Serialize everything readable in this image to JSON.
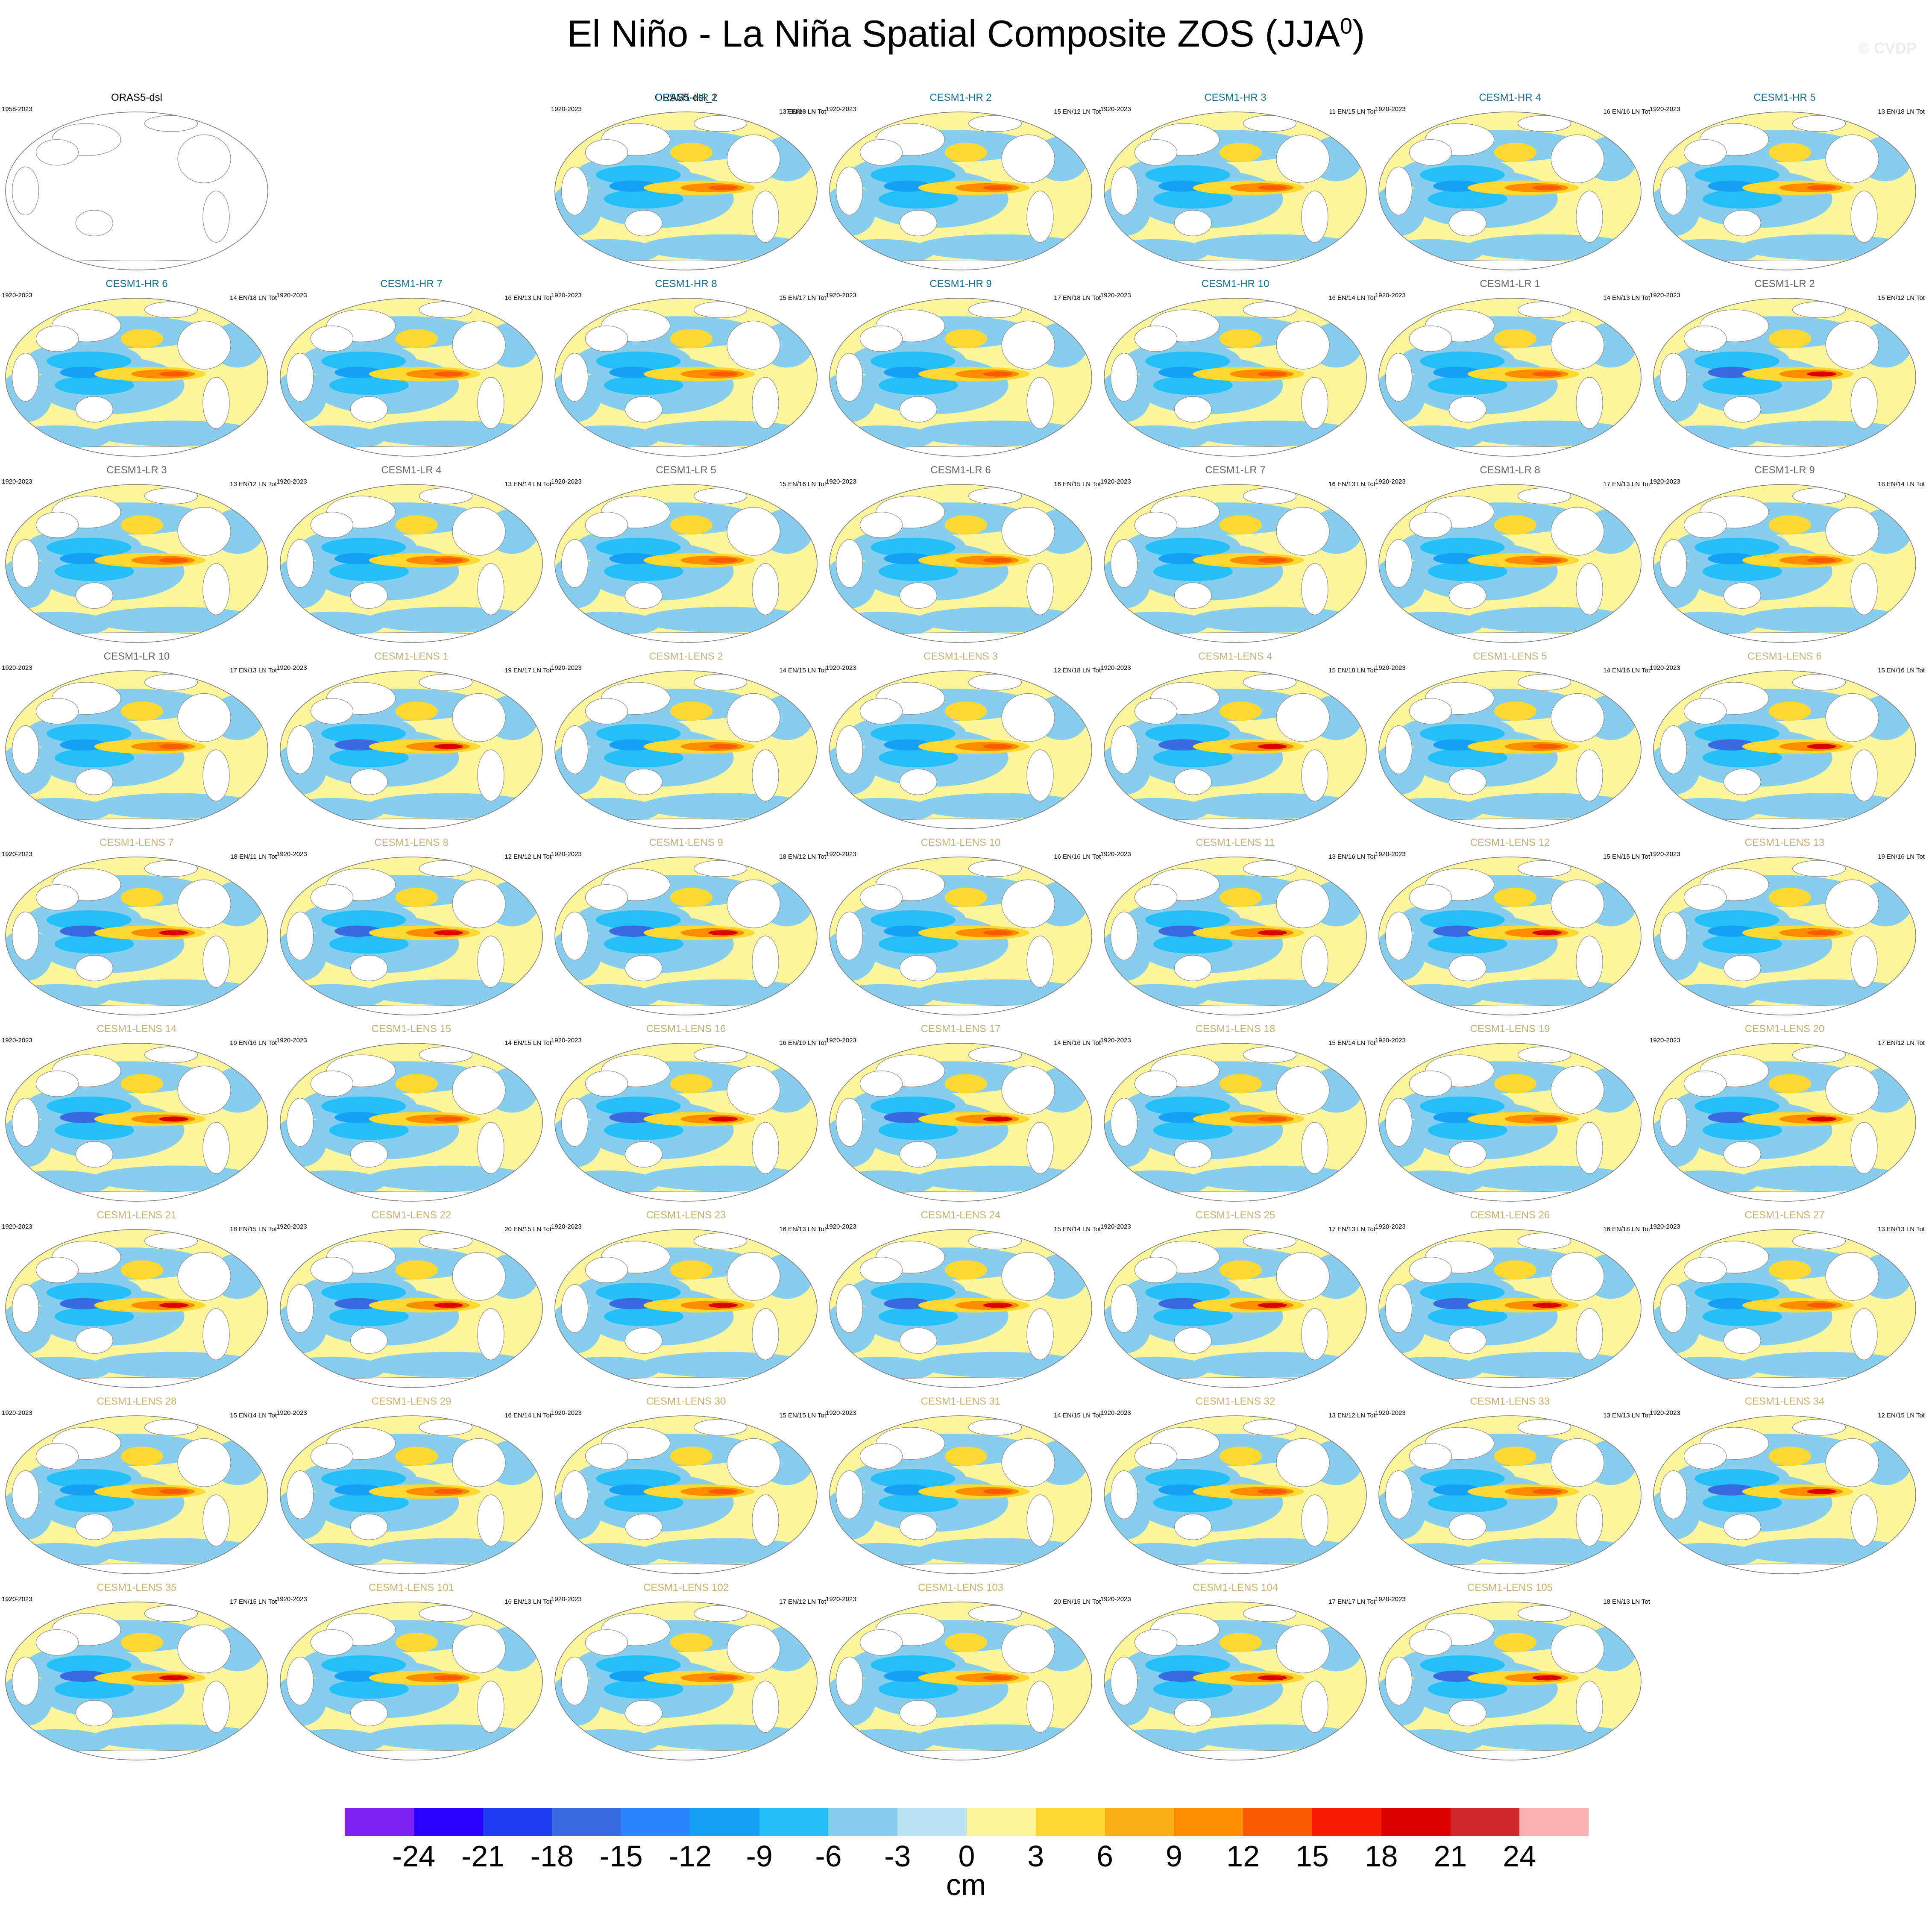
{
  "title": {
    "main": "El Niño - La Niña Spatial Composite ZOS (JJA",
    "superscript": "0",
    "close": ")"
  },
  "watermark": "© CVDP",
  "colors": {
    "obs_title": "#000000",
    "hr_title": "#1a6e8e",
    "lr_title": "#666666",
    "lens_title": "#c9b06e",
    "land": "#ffffff",
    "coast": "#888888"
  },
  "panels": [
    {
      "title": "ORAS5-dsl",
      "years": "1958-2023",
      "counts": "",
      "group": "obs",
      "empty": true,
      "amp": 0
    },
    {
      "title": "ORAS5-dsl_2",
      "years": "",
      "counts": "7 EN/6 LN Tot",
      "group": "obs",
      "empty": false,
      "amp": 1.2
    },
    {
      "title": "CESM1-HR 1",
      "years": "1920-2023",
      "counts": "13 EN/13 LN Tot",
      "group": "hr",
      "empty": false,
      "amp": 0.8
    },
    {
      "title": "CESM1-HR 2",
      "years": "1920-2023",
      "counts": "15 EN/12 LN Tot",
      "group": "hr",
      "empty": false,
      "amp": 0.8
    },
    {
      "title": "CESM1-HR 3",
      "years": "1920-2023",
      "counts": "11 EN/15 LN Tot",
      "group": "hr",
      "empty": false,
      "amp": 0.8
    },
    {
      "title": "CESM1-HR 4",
      "years": "1920-2023",
      "counts": "16 EN/16 LN Tot",
      "group": "hr",
      "empty": false,
      "amp": 0.8
    },
    {
      "title": "CESM1-HR 5",
      "years": "1920-2023",
      "counts": "13 EN/18 LN Tot",
      "group": "hr",
      "empty": false,
      "amp": 0.8
    },
    {
      "title": "CESM1-HR 6",
      "years": "1920-2023",
      "counts": "14 EN/18 LN Tot",
      "group": "hr",
      "empty": false,
      "amp": 0.7
    },
    {
      "title": "CESM1-HR 7",
      "years": "1920-2023",
      "counts": "16 EN/13 LN Tot",
      "group": "hr",
      "empty": false,
      "amp": 0.8
    },
    {
      "title": "CESM1-HR 8",
      "years": "1920-2023",
      "counts": "15 EN/17 LN Tot",
      "group": "hr",
      "empty": false,
      "amp": 0.8
    },
    {
      "title": "CESM1-HR 9",
      "years": "1920-2023",
      "counts": "17 EN/18 LN Tot",
      "group": "hr",
      "empty": false,
      "amp": 0.8
    },
    {
      "title": "CESM1-HR 10",
      "years": "1920-2023",
      "counts": "16 EN/14 LN Tot",
      "group": "hr",
      "empty": false,
      "amp": 0.7
    },
    {
      "title": "CESM1-LR 1",
      "years": "1920-2023",
      "counts": "14 EN/13 LN Tot",
      "group": "lr",
      "empty": false,
      "amp": 0.6
    },
    {
      "title": "CESM1-LR 2",
      "years": "1920-2023",
      "counts": "15 EN/12 LN Tot",
      "group": "lr",
      "empty": false,
      "amp": 0.9
    },
    {
      "title": "CESM1-LR 3",
      "years": "1920-2023",
      "counts": "13 EN/12 LN Tot",
      "group": "lr",
      "empty": false,
      "amp": 0.7
    },
    {
      "title": "CESM1-LR 4",
      "years": "1920-2023",
      "counts": "13 EN/14 LN Tot",
      "group": "lr",
      "empty": false,
      "amp": 0.6
    },
    {
      "title": "CESM1-LR 5",
      "years": "1920-2023",
      "counts": "15 EN/16 LN Tot",
      "group": "lr",
      "empty": false,
      "amp": 0.6
    },
    {
      "title": "CESM1-LR 6",
      "years": "1920-2023",
      "counts": "16 EN/15 LN Tot",
      "group": "lr",
      "empty": false,
      "amp": 0.6
    },
    {
      "title": "CESM1-LR 7",
      "years": "1920-2023",
      "counts": "16 EN/13 LN Tot",
      "group": "lr",
      "empty": false,
      "amp": 0.6
    },
    {
      "title": "CESM1-LR 8",
      "years": "1920-2023",
      "counts": "17 EN/13 LN Tot",
      "group": "lr",
      "empty": false,
      "amp": 0.6
    },
    {
      "title": "CESM1-LR 9",
      "years": "1920-2023",
      "counts": "18 EN/14 LN Tot",
      "group": "lr",
      "empty": false,
      "amp": 0.7
    },
    {
      "title": "CESM1-LR 10",
      "years": "1920-2023",
      "counts": "17 EN/13 LN Tot",
      "group": "lr",
      "empty": false,
      "amp": 0.7
    },
    {
      "title": "CESM1-LENS 1",
      "years": "1920-2023",
      "counts": "19 EN/17 LN Tot",
      "group": "lens",
      "empty": false,
      "amp": 1.0
    },
    {
      "title": "CESM1-LENS 2",
      "years": "1920-2023",
      "counts": "14 EN/15 LN Tot",
      "group": "lens",
      "empty": false,
      "amp": 0.8
    },
    {
      "title": "CESM1-LENS 3",
      "years": "1920-2023",
      "counts": "12 EN/18 LN Tot",
      "group": "lens",
      "empty": false,
      "amp": 0.8
    },
    {
      "title": "CESM1-LENS 4",
      "years": "1920-2023",
      "counts": "15 EN/18 LN Tot",
      "group": "lens",
      "empty": false,
      "amp": 0.9
    },
    {
      "title": "CESM1-LENS 5",
      "years": "1920-2023",
      "counts": "14 EN/16 LN Tot",
      "group": "lens",
      "empty": false,
      "amp": 0.8
    },
    {
      "title": "CESM1-LENS 6",
      "years": "1920-2023",
      "counts": "15 EN/16 LN Tot",
      "group": "lens",
      "empty": false,
      "amp": 1.0
    },
    {
      "title": "CESM1-LENS 7",
      "years": "1920-2023",
      "counts": "18 EN/11 LN Tot",
      "group": "lens",
      "empty": false,
      "amp": 0.9
    },
    {
      "title": "CESM1-LENS 8",
      "years": "1920-2023",
      "counts": "12 EN/12 LN Tot",
      "group": "lens",
      "empty": false,
      "amp": 1.0
    },
    {
      "title": "CESM1-LENS 9",
      "years": "1920-2023",
      "counts": "18 EN/12 LN Tot",
      "group": "lens",
      "empty": false,
      "amp": 0.9
    },
    {
      "title": "CESM1-LENS 10",
      "years": "1920-2023",
      "counts": "16 EN/16 LN Tot",
      "group": "lens",
      "empty": false,
      "amp": 0.8
    },
    {
      "title": "CESM1-LENS 11",
      "years": "1920-2023",
      "counts": "13 EN/16 LN Tot",
      "group": "lens",
      "empty": false,
      "amp": 1.0
    },
    {
      "title": "CESM1-LENS 12",
      "years": "1920-2023",
      "counts": "15 EN/15 LN Tot",
      "group": "lens",
      "empty": false,
      "amp": 0.9
    },
    {
      "title": "CESM1-LENS 13",
      "years": "1920-2023",
      "counts": "19 EN/16 LN Tot",
      "group": "lens",
      "empty": false,
      "amp": 0.7
    },
    {
      "title": "CESM1-LENS 14",
      "years": "1920-2023",
      "counts": "19 EN/16 LN Tot",
      "group": "lens",
      "empty": false,
      "amp": 1.0
    },
    {
      "title": "CESM1-LENS 15",
      "years": "1920-2023",
      "counts": "14 EN/15 LN Tot",
      "group": "lens",
      "empty": false,
      "amp": 0.8
    },
    {
      "title": "CESM1-LENS 16",
      "years": "1920-2023",
      "counts": "16 EN/19 LN Tot",
      "group": "lens",
      "empty": false,
      "amp": 0.9
    },
    {
      "title": "CESM1-LENS 17",
      "years": "1920-2023",
      "counts": "14 EN/16 LN Tot",
      "group": "lens",
      "empty": false,
      "amp": 0.9
    },
    {
      "title": "CESM1-LENS 18",
      "years": "1920-2023",
      "counts": "15 EN/14 LN Tot",
      "group": "lens",
      "empty": false,
      "amp": 0.8
    },
    {
      "title": "CESM1-LENS 19",
      "years": "1920-2023",
      "counts": "",
      "group": "lens",
      "empty": false,
      "amp": 0.8
    },
    {
      "title": "CESM1-LENS 20",
      "years": "1920-2023",
      "counts": "17 EN/12 LN Tot",
      "group": "lens",
      "empty": false,
      "amp": 0.9
    },
    {
      "title": "CESM1-LENS 21",
      "years": "1920-2023",
      "counts": "18 EN/15 LN Tot",
      "group": "lens",
      "empty": false,
      "amp": 0.9
    },
    {
      "title": "CESM1-LENS 22",
      "years": "1920-2023",
      "counts": "20 EN/15 LN Tot",
      "group": "lens",
      "empty": false,
      "amp": 0.9
    },
    {
      "title": "CESM1-LENS 23",
      "years": "1920-2023",
      "counts": "16 EN/13 LN Tot",
      "group": "lens",
      "empty": false,
      "amp": 0.9
    },
    {
      "title": "CESM1-LENS 24",
      "years": "1920-2023",
      "counts": "15 EN/14 LN Tot",
      "group": "lens",
      "empty": false,
      "amp": 1.0
    },
    {
      "title": "CESM1-LENS 25",
      "years": "1920-2023",
      "counts": "17 EN/13 LN Tot",
      "group": "lens",
      "empty": false,
      "amp": 0.9
    },
    {
      "title": "CESM1-LENS 26",
      "years": "1920-2023",
      "counts": "16 EN/18 LN Tot",
      "group": "lens",
      "empty": false,
      "amp": 0.9
    },
    {
      "title": "CESM1-LENS 27",
      "years": "1920-2023",
      "counts": "13 EN/13 LN Tot",
      "group": "lens",
      "empty": false,
      "amp": 0.8
    },
    {
      "title": "CESM1-LENS 28",
      "years": "1920-2023",
      "counts": "15 EN/14 LN Tot",
      "group": "lens",
      "empty": false,
      "amp": 0.8
    },
    {
      "title": "CESM1-LENS 29",
      "years": "1920-2023",
      "counts": "16 EN/14 LN Tot",
      "group": "lens",
      "empty": false,
      "amp": 0.8
    },
    {
      "title": "CESM1-LENS 30",
      "years": "1920-2023",
      "counts": "15 EN/15 LN Tot",
      "group": "lens",
      "empty": false,
      "amp": 0.8
    },
    {
      "title": "CESM1-LENS 31",
      "years": "1920-2023",
      "counts": "14 EN/15 LN Tot",
      "group": "lens",
      "empty": false,
      "amp": 0.8
    },
    {
      "title": "CESM1-LENS 32",
      "years": "1920-2023",
      "counts": "13 EN/12 LN Tot",
      "group": "lens",
      "empty": false,
      "amp": 0.8
    },
    {
      "title": "CESM1-LENS 33",
      "years": "1920-2023",
      "counts": "13 EN/13 LN Tot",
      "group": "lens",
      "empty": false,
      "amp": 0.8
    },
    {
      "title": "CESM1-LENS 34",
      "years": "1920-2023",
      "counts": "12 EN/15 LN Tot",
      "group": "lens",
      "empty": false,
      "amp": 0.9
    },
    {
      "title": "CESM1-LENS 35",
      "years": "1920-2023",
      "counts": "17 EN/15 LN Tot",
      "group": "lens",
      "empty": false,
      "amp": 0.9
    },
    {
      "title": "CESM1-LENS 101",
      "years": "1920-2023",
      "counts": "16 EN/13 LN Tot",
      "group": "lens",
      "empty": false,
      "amp": 0.8
    },
    {
      "title": "CESM1-LENS 102",
      "years": "1920-2023",
      "counts": "17 EN/12 LN Tot",
      "group": "lens",
      "empty": false,
      "amp": 0.8
    },
    {
      "title": "CESM1-LENS 103",
      "years": "1920-2023",
      "counts": "20 EN/15 LN Tot",
      "group": "lens",
      "empty": false,
      "amp": 0.8
    },
    {
      "title": "CESM1-LENS 104",
      "years": "1920-2023",
      "counts": "17 EN/17 LN Tot",
      "group": "lens",
      "empty": false,
      "amp": 0.9
    },
    {
      "title": "CESM1-LENS 105",
      "years": "1920-2023",
      "counts": "18 EN/13 LN Tot",
      "group": "lens",
      "empty": false,
      "amp": 0.9
    }
  ],
  "colorbar": {
    "colors": [
      "#7f22f2",
      "#2a00ff",
      "#1f3cf0",
      "#3a6ae0",
      "#2a85ff",
      "#14a0f5",
      "#23c0f8",
      "#87cdee",
      "#b8e1f2",
      "#fdf59c",
      "#fdd830",
      "#fbb018",
      "#fb8c00",
      "#f95c00",
      "#fa1a00",
      "#dd0000",
      "#d0282a",
      "#fbb0b0"
    ],
    "labels": [
      "-24",
      "-21",
      "-18",
      "-15",
      "-12",
      "-9",
      "-6",
      "-3",
      "0",
      "3",
      "6",
      "9",
      "12",
      "15",
      "18",
      "21",
      "24"
    ],
    "units": "cm"
  }
}
